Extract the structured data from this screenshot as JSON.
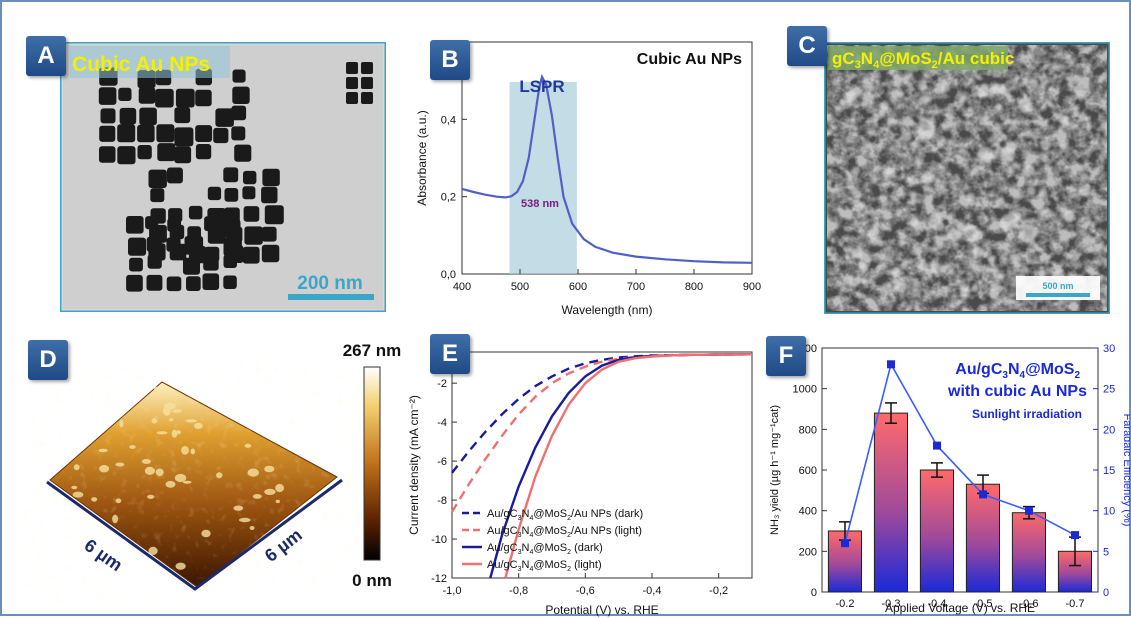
{
  "panels": {
    "A": {
      "letter": "A",
      "title": "Cubic Au NPs",
      "scalebar": "200 nm"
    },
    "B": {
      "letter": "B",
      "title": "Cubic Au NPs",
      "lspr": "LSPR",
      "peak_label": "538 nm"
    },
    "C": {
      "letter": "C",
      "title_parts": [
        "gC",
        "3",
        "N",
        "4",
        "@MoS",
        "2",
        "/Au cubic"
      ],
      "scalebar": "500 nm"
    },
    "D": {
      "letter": "D",
      "cbar_max": "267 nm",
      "cbar_min": "0 nm",
      "axis1": "6 µm",
      "axis2": "6 µm"
    },
    "E": {
      "letter": "E"
    },
    "F": {
      "letter": "F",
      "title_parts": [
        "Au/gC",
        "3",
        "N",
        "4",
        "@MoS",
        "2"
      ],
      "title_line2": "with cubic Au NPs",
      "subtitle": "Sunlight irradiation"
    }
  },
  "colors": {
    "accent": "#1f4a86",
    "blue_curve": "#5060c8",
    "dark_navy": "#1a1a9e",
    "salmon": "#f07070",
    "yellow_text": "#f5f000",
    "cyan_scale": "#3aa7c9"
  },
  "chart_data": [
    {
      "id": "B",
      "type": "line",
      "title": "Cubic Au NPs",
      "xlabel": "Wavelength (nm)",
      "ylabel": "Absorbance (a.u.)",
      "xlim": [
        400,
        900
      ],
      "ylim": [
        0,
        0.6
      ],
      "xticks": [
        "400",
        "500",
        "600",
        "700",
        "800",
        "900"
      ],
      "yticks": [
        "0,0",
        "0,2",
        "0,4"
      ],
      "shaded_band": [
        482,
        598
      ],
      "series": [
        {
          "x": [
            400,
            420,
            440,
            460,
            475,
            485,
            495,
            505,
            515,
            525,
            533,
            538,
            545,
            555,
            565,
            575,
            590,
            610,
            630,
            660,
            700,
            750,
            800,
            850,
            900
          ],
          "y": [
            0.22,
            0.212,
            0.205,
            0.2,
            0.198,
            0.201,
            0.212,
            0.24,
            0.3,
            0.4,
            0.48,
            0.51,
            0.49,
            0.41,
            0.3,
            0.2,
            0.13,
            0.09,
            0.07,
            0.055,
            0.045,
            0.038,
            0.033,
            0.03,
            0.029
          ]
        }
      ]
    },
    {
      "id": "E",
      "type": "line",
      "xlabel": "Potential (V) vs. RHE",
      "ylabel": "Current density (mA cm⁻²)",
      "xlim": [
        -1.0,
        -0.1
      ],
      "ylim": [
        -12,
        -0.4
      ],
      "xticks": [
        "-1,0",
        "-0,8",
        "-0,6",
        "-0,4",
        "-0,2"
      ],
      "yticks": [
        "-2",
        "-4",
        "-6",
        "-8",
        "-10",
        "-12"
      ],
      "series": [
        {
          "legend_parts": [
            "Au/gC",
            "3",
            "N",
            "4",
            "@MoS",
            "2",
            "/Au NPs (dark)"
          ],
          "color": "#1a1a9e",
          "dash": true,
          "x": [
            -1.0,
            -0.95,
            -0.9,
            -0.85,
            -0.8,
            -0.75,
            -0.7,
            -0.65,
            -0.6,
            -0.55,
            -0.5,
            -0.45,
            -0.4,
            -0.3,
            -0.2,
            -0.1
          ],
          "y": [
            -6.6,
            -5.5,
            -4.5,
            -3.6,
            -2.8,
            -2.15,
            -1.65,
            -1.25,
            -0.98,
            -0.8,
            -0.68,
            -0.62,
            -0.58,
            -0.55,
            -0.53,
            -0.52
          ]
        },
        {
          "legend_parts": [
            "Au/gC",
            "3",
            "N",
            "4",
            "@MoS",
            "2",
            "/Au NPs (light)"
          ],
          "color": "#f07070",
          "dash": true,
          "x": [
            -1.0,
            -0.95,
            -0.9,
            -0.85,
            -0.8,
            -0.75,
            -0.7,
            -0.65,
            -0.6,
            -0.55,
            -0.5,
            -0.45,
            -0.4,
            -0.3,
            -0.2,
            -0.1
          ],
          "y": [
            -8.6,
            -7.2,
            -5.9,
            -4.7,
            -3.6,
            -2.7,
            -2.0,
            -1.5,
            -1.15,
            -0.9,
            -0.75,
            -0.66,
            -0.6,
            -0.55,
            -0.53,
            -0.52
          ]
        },
        {
          "legend_parts": [
            "Au/gC",
            "3",
            "N",
            "4",
            "@MoS",
            "2",
            " (dark)"
          ],
          "color": "#1a1a9e",
          "dash": false,
          "x": [
            -0.885,
            -0.85,
            -0.8,
            -0.75,
            -0.7,
            -0.65,
            -0.6,
            -0.55,
            -0.5,
            -0.45,
            -0.4,
            -0.3,
            -0.2,
            -0.1
          ],
          "y": [
            -12,
            -9.8,
            -7.3,
            -5.3,
            -3.7,
            -2.5,
            -1.65,
            -1.1,
            -0.8,
            -0.66,
            -0.6,
            -0.55,
            -0.53,
            -0.52
          ]
        },
        {
          "legend_parts": [
            "Au/gC",
            "3",
            "N",
            "4",
            "@MoS",
            "2",
            " (light)"
          ],
          "color": "#f07070",
          "dash": false,
          "x": [
            -0.84,
            -0.8,
            -0.75,
            -0.7,
            -0.65,
            -0.6,
            -0.55,
            -0.5,
            -0.45,
            -0.4,
            -0.35,
            -0.3,
            -0.2,
            -0.1
          ],
          "y": [
            -12,
            -9.5,
            -6.8,
            -4.7,
            -3.1,
            -2.0,
            -1.3,
            -0.9,
            -0.72,
            -0.63,
            -0.58,
            -0.55,
            -0.53,
            -0.52
          ]
        }
      ]
    },
    {
      "id": "F",
      "type": "bar",
      "xlabel": "Applied Voltage (V) vs. RHE",
      "ylabel": "NH₃ yield (µg h⁻¹ mg⁻¹cat)",
      "y2label": "Faradaic Efficiency (%)",
      "categories": [
        "-0.2",
        "-0.3",
        "-0.4",
        "-0.5",
        "-0.6",
        "-0.7"
      ],
      "ylim": [
        0,
        1200
      ],
      "y2lim": [
        0,
        30
      ],
      "yticks": [
        "0",
        "200",
        "400",
        "600",
        "800",
        "1000",
        "1200"
      ],
      "y2ticks": [
        "0",
        "5",
        "10",
        "15",
        "20",
        "25",
        "30"
      ],
      "series": [
        {
          "name": "NH3 yield",
          "values": [
            300,
            880,
            600,
            530,
            390,
            200
          ],
          "errors": [
            45,
            50,
            35,
            45,
            30,
            70
          ]
        },
        {
          "name": "Faradaic Efficiency",
          "axis": "right",
          "values": [
            6,
            28,
            18,
            12,
            10,
            7
          ]
        }
      ]
    }
  ]
}
